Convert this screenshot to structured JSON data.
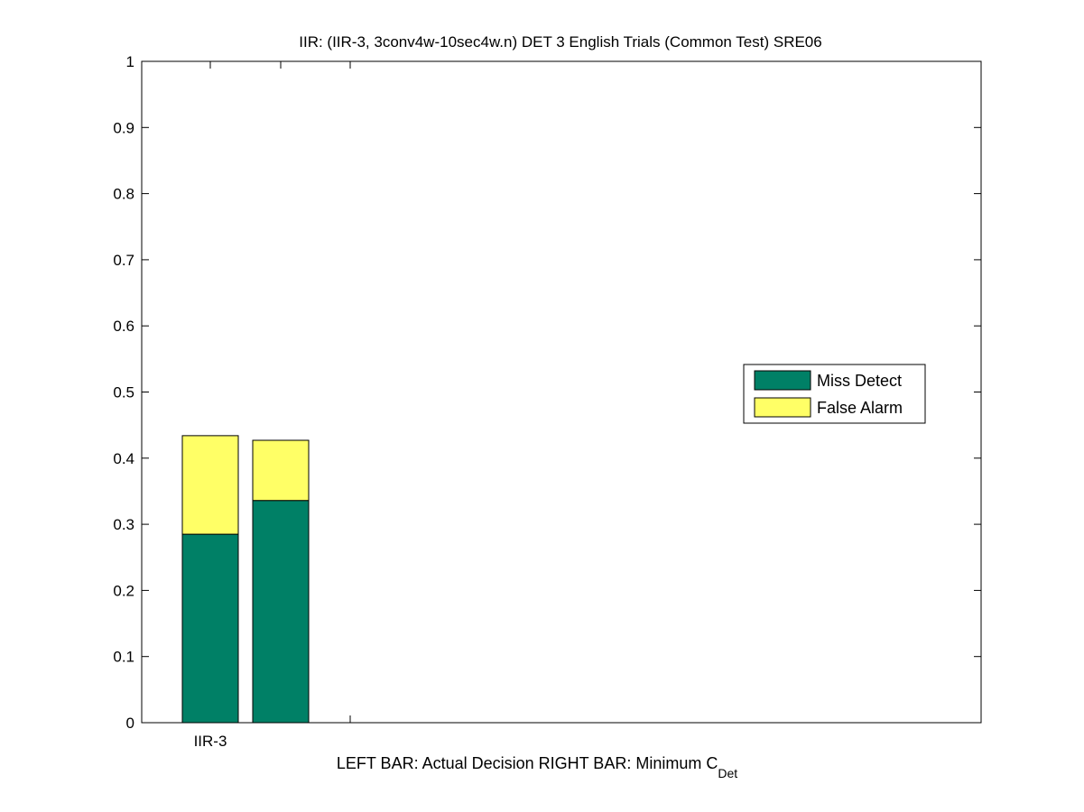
{
  "chart_data": {
    "type": "bar",
    "stacked": true,
    "title": "IIR: (IIR-3, 3conv4w-10sec4w.n) DET 3 English Trials (Common Test) SRE06",
    "xlabel": {
      "main": "LEFT BAR: Actual Decision     RIGHT BAR: Minimum C",
      "subscript": "Det"
    },
    "ylabel": "",
    "ylim": [
      0,
      1
    ],
    "y_ticks": [
      "0",
      "0.1",
      "0.2",
      "0.3",
      "0.4",
      "0.5",
      "0.6",
      "0.7",
      "0.8",
      "0.9",
      "1"
    ],
    "categories": [
      "IIR-3"
    ],
    "bars": [
      {
        "category": "IIR-3",
        "variant": "actual decision",
        "miss_detect": 0.285,
        "false_alarm": 0.149
      },
      {
        "category": "IIR-3",
        "variant": "minimum cdet",
        "miss_detect": 0.336,
        "false_alarm": 0.091
      }
    ],
    "series": [
      {
        "name": "Miss Detect",
        "color": "#008066"
      },
      {
        "name": "False Alarm",
        "color": "#ffff66"
      }
    ],
    "legend": {
      "placement": "right",
      "entries": [
        "Miss Detect",
        "False Alarm"
      ]
    },
    "grid": false
  }
}
